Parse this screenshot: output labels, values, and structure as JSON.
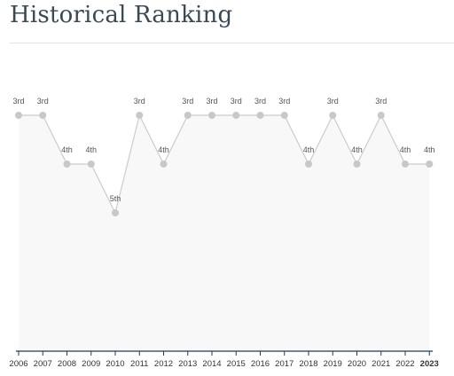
{
  "title": "Historical Ranking",
  "chart_data": {
    "type": "area",
    "title": "Historical Ranking",
    "xlabel": "",
    "ylabel": "",
    "x": [
      "2006",
      "2007",
      "2008",
      "2009",
      "2010",
      "2011",
      "2012",
      "2013",
      "2014",
      "2015",
      "2016",
      "2017",
      "2018",
      "2019",
      "2020",
      "2021",
      "2022",
      "2023"
    ],
    "values": [
      3,
      3,
      4,
      4,
      5,
      3,
      4,
      3,
      3,
      3,
      3,
      3,
      4,
      3,
      4,
      3,
      4,
      4
    ],
    "labels": [
      "3rd",
      "3rd",
      "4th",
      "4th",
      "5th",
      "3rd",
      "4th",
      "3rd",
      "3rd",
      "3rd",
      "3rd",
      "3rd",
      "4th",
      "3rd",
      "4th",
      "3rd",
      "4th",
      "4th"
    ],
    "highlighted_x": "2023",
    "ylim": [
      1,
      8
    ],
    "grid": false,
    "y_inverted": true,
    "colors": {
      "line": "#cccccc",
      "fill": "#f8f8f8",
      "point": "#c8c8c8",
      "axis": "#1f3a5f"
    }
  }
}
